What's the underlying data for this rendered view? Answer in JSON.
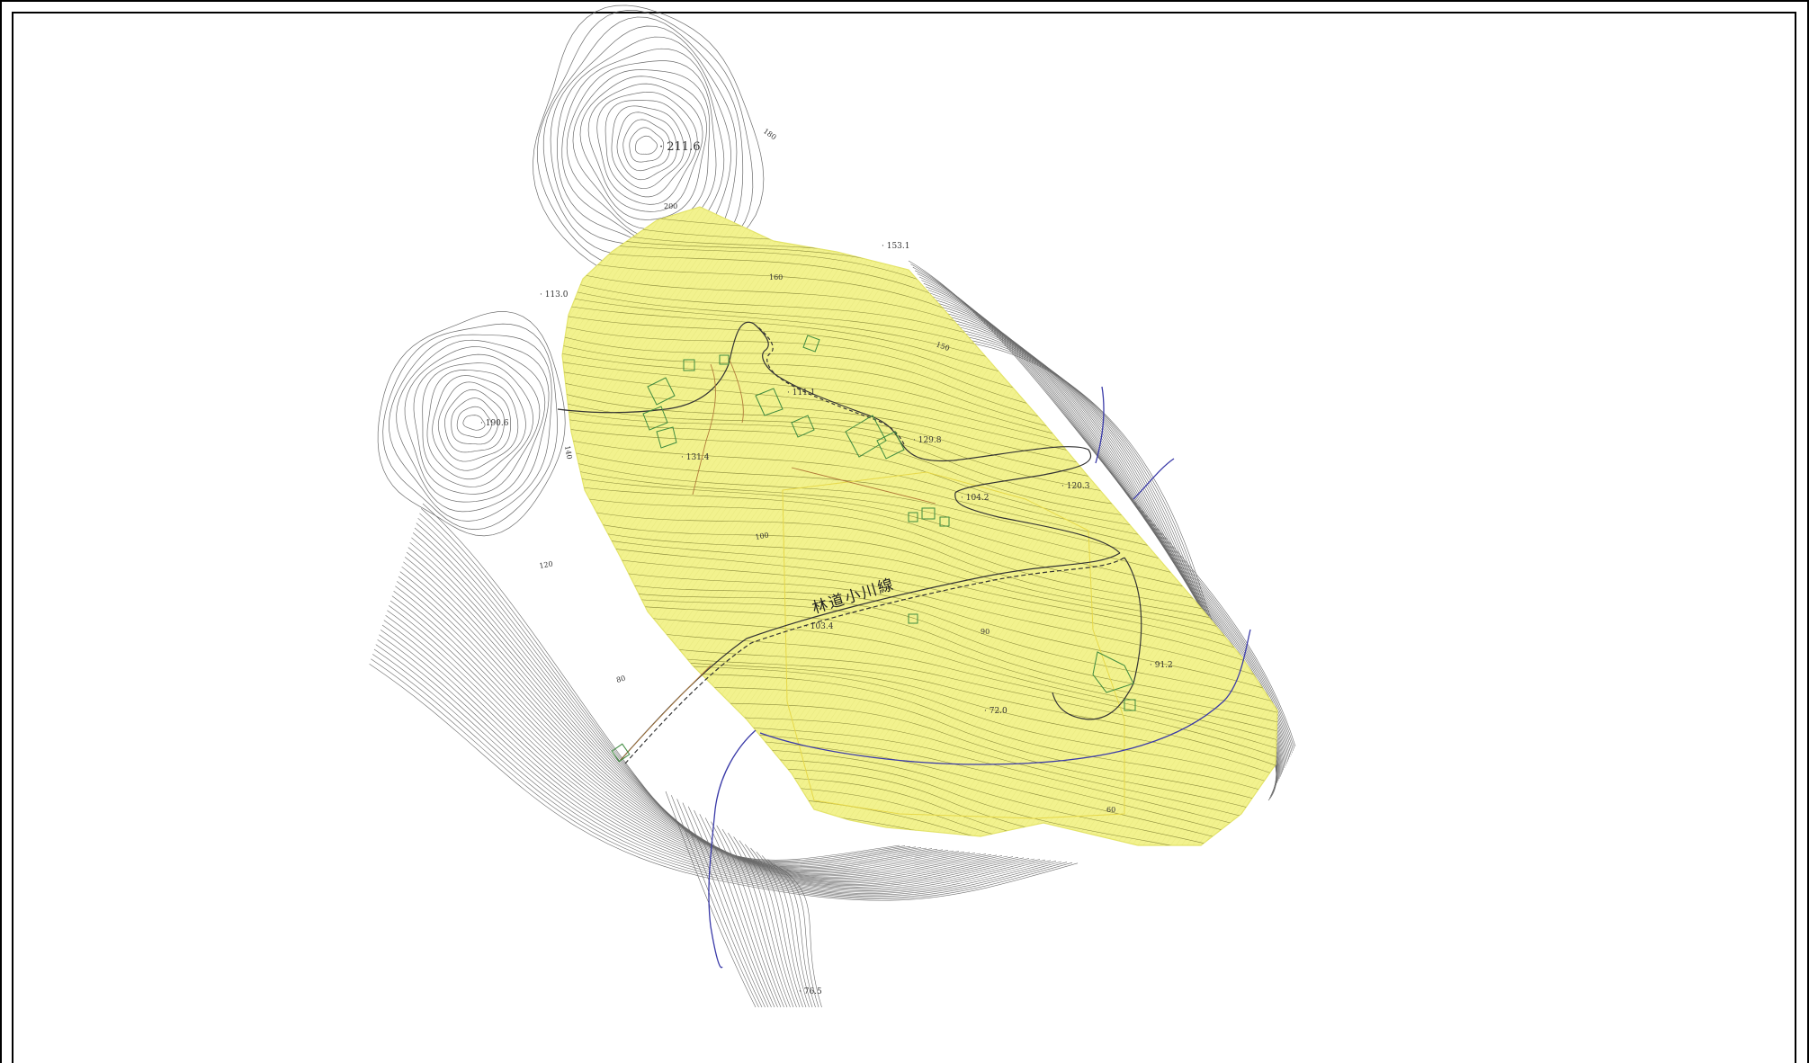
{
  "map": {
    "road_label": "林道小川線",
    "colors": {
      "site_fill": "#f2f28e",
      "contour": "#6b6b6b",
      "contour_in_site": "#8a8a3a",
      "building": "#3f8a3f",
      "stream": "#3a3aa8",
      "road": "#333333",
      "path": "#b07a3a"
    },
    "spot_heights": [
      {
        "id": "peak-north",
        "text": "211.6"
      },
      {
        "id": "west-peak",
        "text": "190.6"
      },
      {
        "id": "northwest",
        "text": "113.0"
      },
      {
        "id": "northeast",
        "text": "153.1"
      },
      {
        "id": "central-west",
        "text": "131.4"
      },
      {
        "id": "central-road",
        "text": "129.8"
      },
      {
        "id": "east-bend",
        "text": "120.3"
      },
      {
        "id": "hamlet",
        "text": "111.1"
      },
      {
        "id": "road-east",
        "text": "104.2"
      },
      {
        "id": "road-mid",
        "text": "103.4"
      },
      {
        "id": "south-center",
        "text": "72.0"
      },
      {
        "id": "east-house",
        "text": "91.2"
      },
      {
        "id": "bottom",
        "text": "76.5"
      }
    ],
    "contour_labels": [
      {
        "id": "c200",
        "text": "200"
      },
      {
        "id": "c180",
        "text": "180"
      },
      {
        "id": "c160",
        "text": "160"
      },
      {
        "id": "c150",
        "text": "150"
      },
      {
        "id": "c140",
        "text": "140"
      },
      {
        "id": "c120",
        "text": "120"
      },
      {
        "id": "c100",
        "text": "100"
      },
      {
        "id": "c90",
        "text": "90"
      },
      {
        "id": "c80",
        "text": "80"
      },
      {
        "id": "c60",
        "text": "60"
      }
    ]
  }
}
